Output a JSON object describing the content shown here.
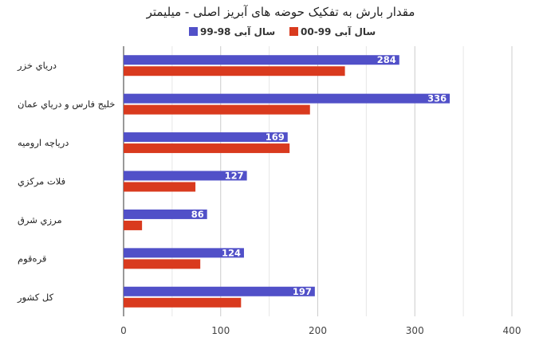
{
  "chart_data": {
    "type": "bar",
    "orientation": "horizontal",
    "title": "مقدار بارش به تفکیک حوضه های آبریز اصلی - میلیمتر",
    "categories": [
      "درياي خزر",
      "خليج فارس و درياي عمان",
      "درياچه اروميه",
      "فلات مرکزي",
      "مرزي شرق",
      "قره‌قوم",
      "کل کشور"
    ],
    "series": [
      {
        "name": "سال آبی 98-99",
        "color": "#5150c8",
        "values": [
          284,
          336,
          169,
          127,
          86,
          124,
          197
        ],
        "labels_shown": true
      },
      {
        "name": "سال آبی 99-00",
        "color": "#d93a1e",
        "values": [
          228,
          192,
          171,
          74,
          19,
          79,
          121
        ],
        "labels_shown": false
      }
    ],
    "xlim": [
      0,
      400
    ],
    "xticks": [
      "0",
      "100",
      "200",
      "300",
      "400"
    ],
    "grid": true,
    "legend_position": "top-center"
  }
}
